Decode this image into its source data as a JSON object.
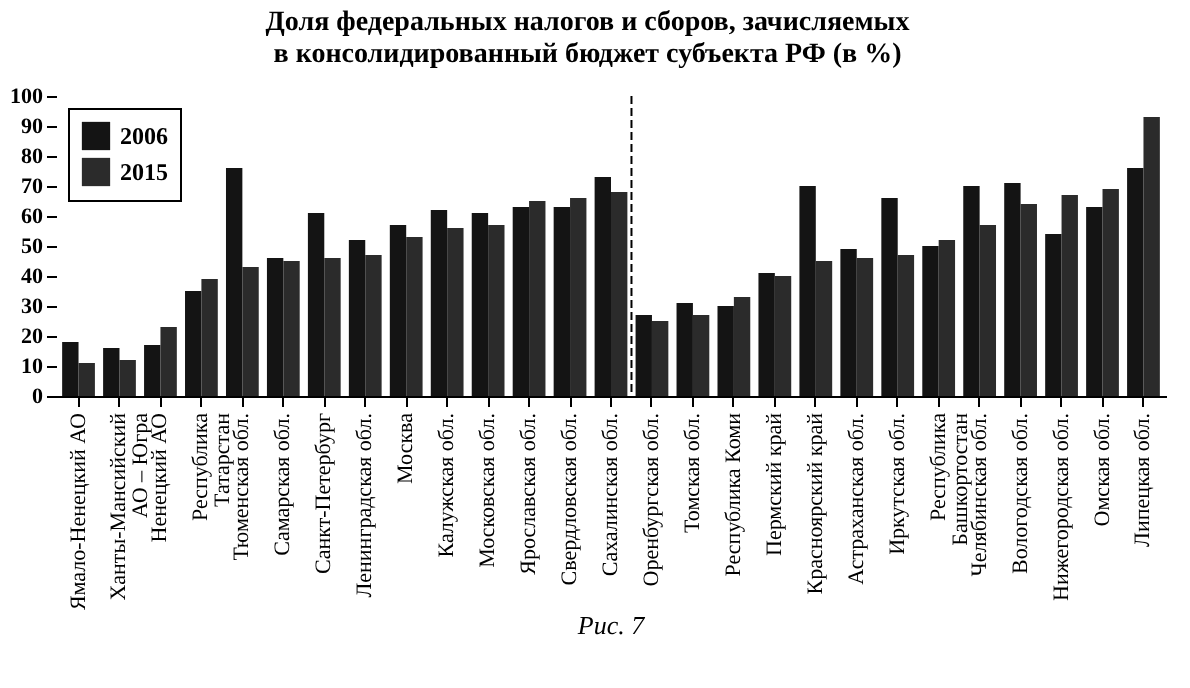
{
  "chart_data": {
    "type": "bar",
    "title": "Доля федеральных налогов и сборов, зачисляемых\nв консолидированный бюджет субъекта РФ (в %)",
    "categories": [
      "Ямало-Ненецкий АО",
      "Ханты-Мансийский\nАО – Югра",
      "Ненецкий АО",
      "Республика\nТатарстан",
      "Тюменская обл.",
      "Самарская обл.",
      "Санкт-Петербург",
      "Ленинградская обл.",
      "Москва",
      "Калужская обл.",
      "Московская обл.",
      "Ярославская обл.",
      "Свердловская обл.",
      "Сахалинская обл.",
      "Оренбургская обл.",
      "Томская обл.",
      "Республика Коми",
      "Пермский край",
      "Красноярский край",
      "Астраханская обл.",
      "Иркутская обл.",
      "Республика\nБашкортостан",
      "Челябинская обл.",
      "Вологодская обл.",
      "Нижегородская обл.",
      "Омская обл.",
      "Липецкая обл."
    ],
    "series": [
      {
        "name": "2006",
        "color": "#141414",
        "values": [
          18,
          16,
          17,
          35,
          76,
          46,
          61,
          52,
          57,
          62,
          61,
          63,
          63,
          73,
          27,
          31,
          30,
          41,
          70,
          49,
          66,
          50,
          70,
          71,
          54,
          63,
          76
        ]
      },
      {
        "name": "2015",
        "color": "#2b2b2b",
        "values": [
          11,
          12,
          23,
          39,
          43,
          45,
          46,
          47,
          53,
          56,
          57,
          65,
          66,
          68,
          25,
          27,
          33,
          40,
          45,
          46,
          47,
          52,
          57,
          64,
          67,
          69,
          93
        ]
      }
    ],
    "ylim": [
      0,
      100
    ],
    "yticks": [
      0,
      10,
      20,
      30,
      40,
      50,
      60,
      70,
      80,
      90,
      100
    ],
    "grid": false,
    "legend": "top left",
    "annotations": [
      "Рис. 7"
    ]
  }
}
